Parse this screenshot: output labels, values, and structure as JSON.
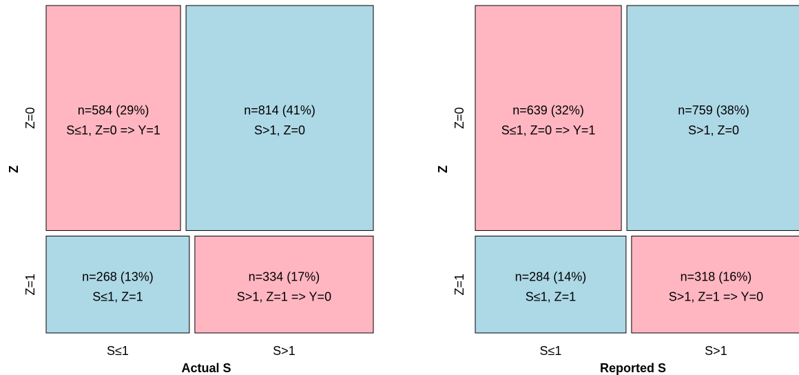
{
  "colors": {
    "pink": "#ffb6c1",
    "blue": "#add8e6",
    "border": "#000000"
  },
  "chart_data": [
    {
      "type": "mosaic",
      "xlabel": "Actual S",
      "ylabel": "Z",
      "x_categories": [
        "S≤1",
        "S>1"
      ],
      "y_categories": [
        "Z=0",
        "Z=1"
      ],
      "cells": [
        {
          "z": "Z=0",
          "s": "S≤1",
          "n": 584,
          "count_label": "n=584 (29%)",
          "desc": "S≤1, Z=0 => Y=1",
          "color": "pink"
        },
        {
          "z": "Z=0",
          "s": "S>1",
          "n": 814,
          "count_label": "n=814 (41%)",
          "desc": "S>1, Z=0",
          "color": "blue"
        },
        {
          "z": "Z=1",
          "s": "S≤1",
          "n": 268,
          "count_label": "n=268 (13%)",
          "desc": "S≤1, Z=1",
          "color": "blue"
        },
        {
          "z": "Z=1",
          "s": "S>1",
          "n": 334,
          "count_label": "n=334 (17%)",
          "desc": "S>1, Z=1 => Y=0",
          "color": "pink"
        }
      ]
    },
    {
      "type": "mosaic",
      "xlabel": "Reported S",
      "ylabel": "Z",
      "x_categories": [
        "S≤1",
        "S>1"
      ],
      "y_categories": [
        "Z=0",
        "Z=1"
      ],
      "cells": [
        {
          "z": "Z=0",
          "s": "S≤1",
          "n": 639,
          "count_label": "n=639 (32%)",
          "desc": "S≤1, Z=0 => Y=1",
          "color": "pink"
        },
        {
          "z": "Z=0",
          "s": "S>1",
          "n": 759,
          "count_label": "n=759 (38%)",
          "desc": "S>1, Z=0",
          "color": "blue"
        },
        {
          "z": "Z=1",
          "s": "S≤1",
          "n": 284,
          "count_label": "n=284 (14%)",
          "desc": "S≤1, Z=1",
          "color": "blue"
        },
        {
          "z": "Z=1",
          "s": "S>1",
          "n": 318,
          "count_label": "n=318 (16%)",
          "desc": "S>1, Z=1 => Y=0",
          "color": "pink"
        }
      ]
    }
  ]
}
